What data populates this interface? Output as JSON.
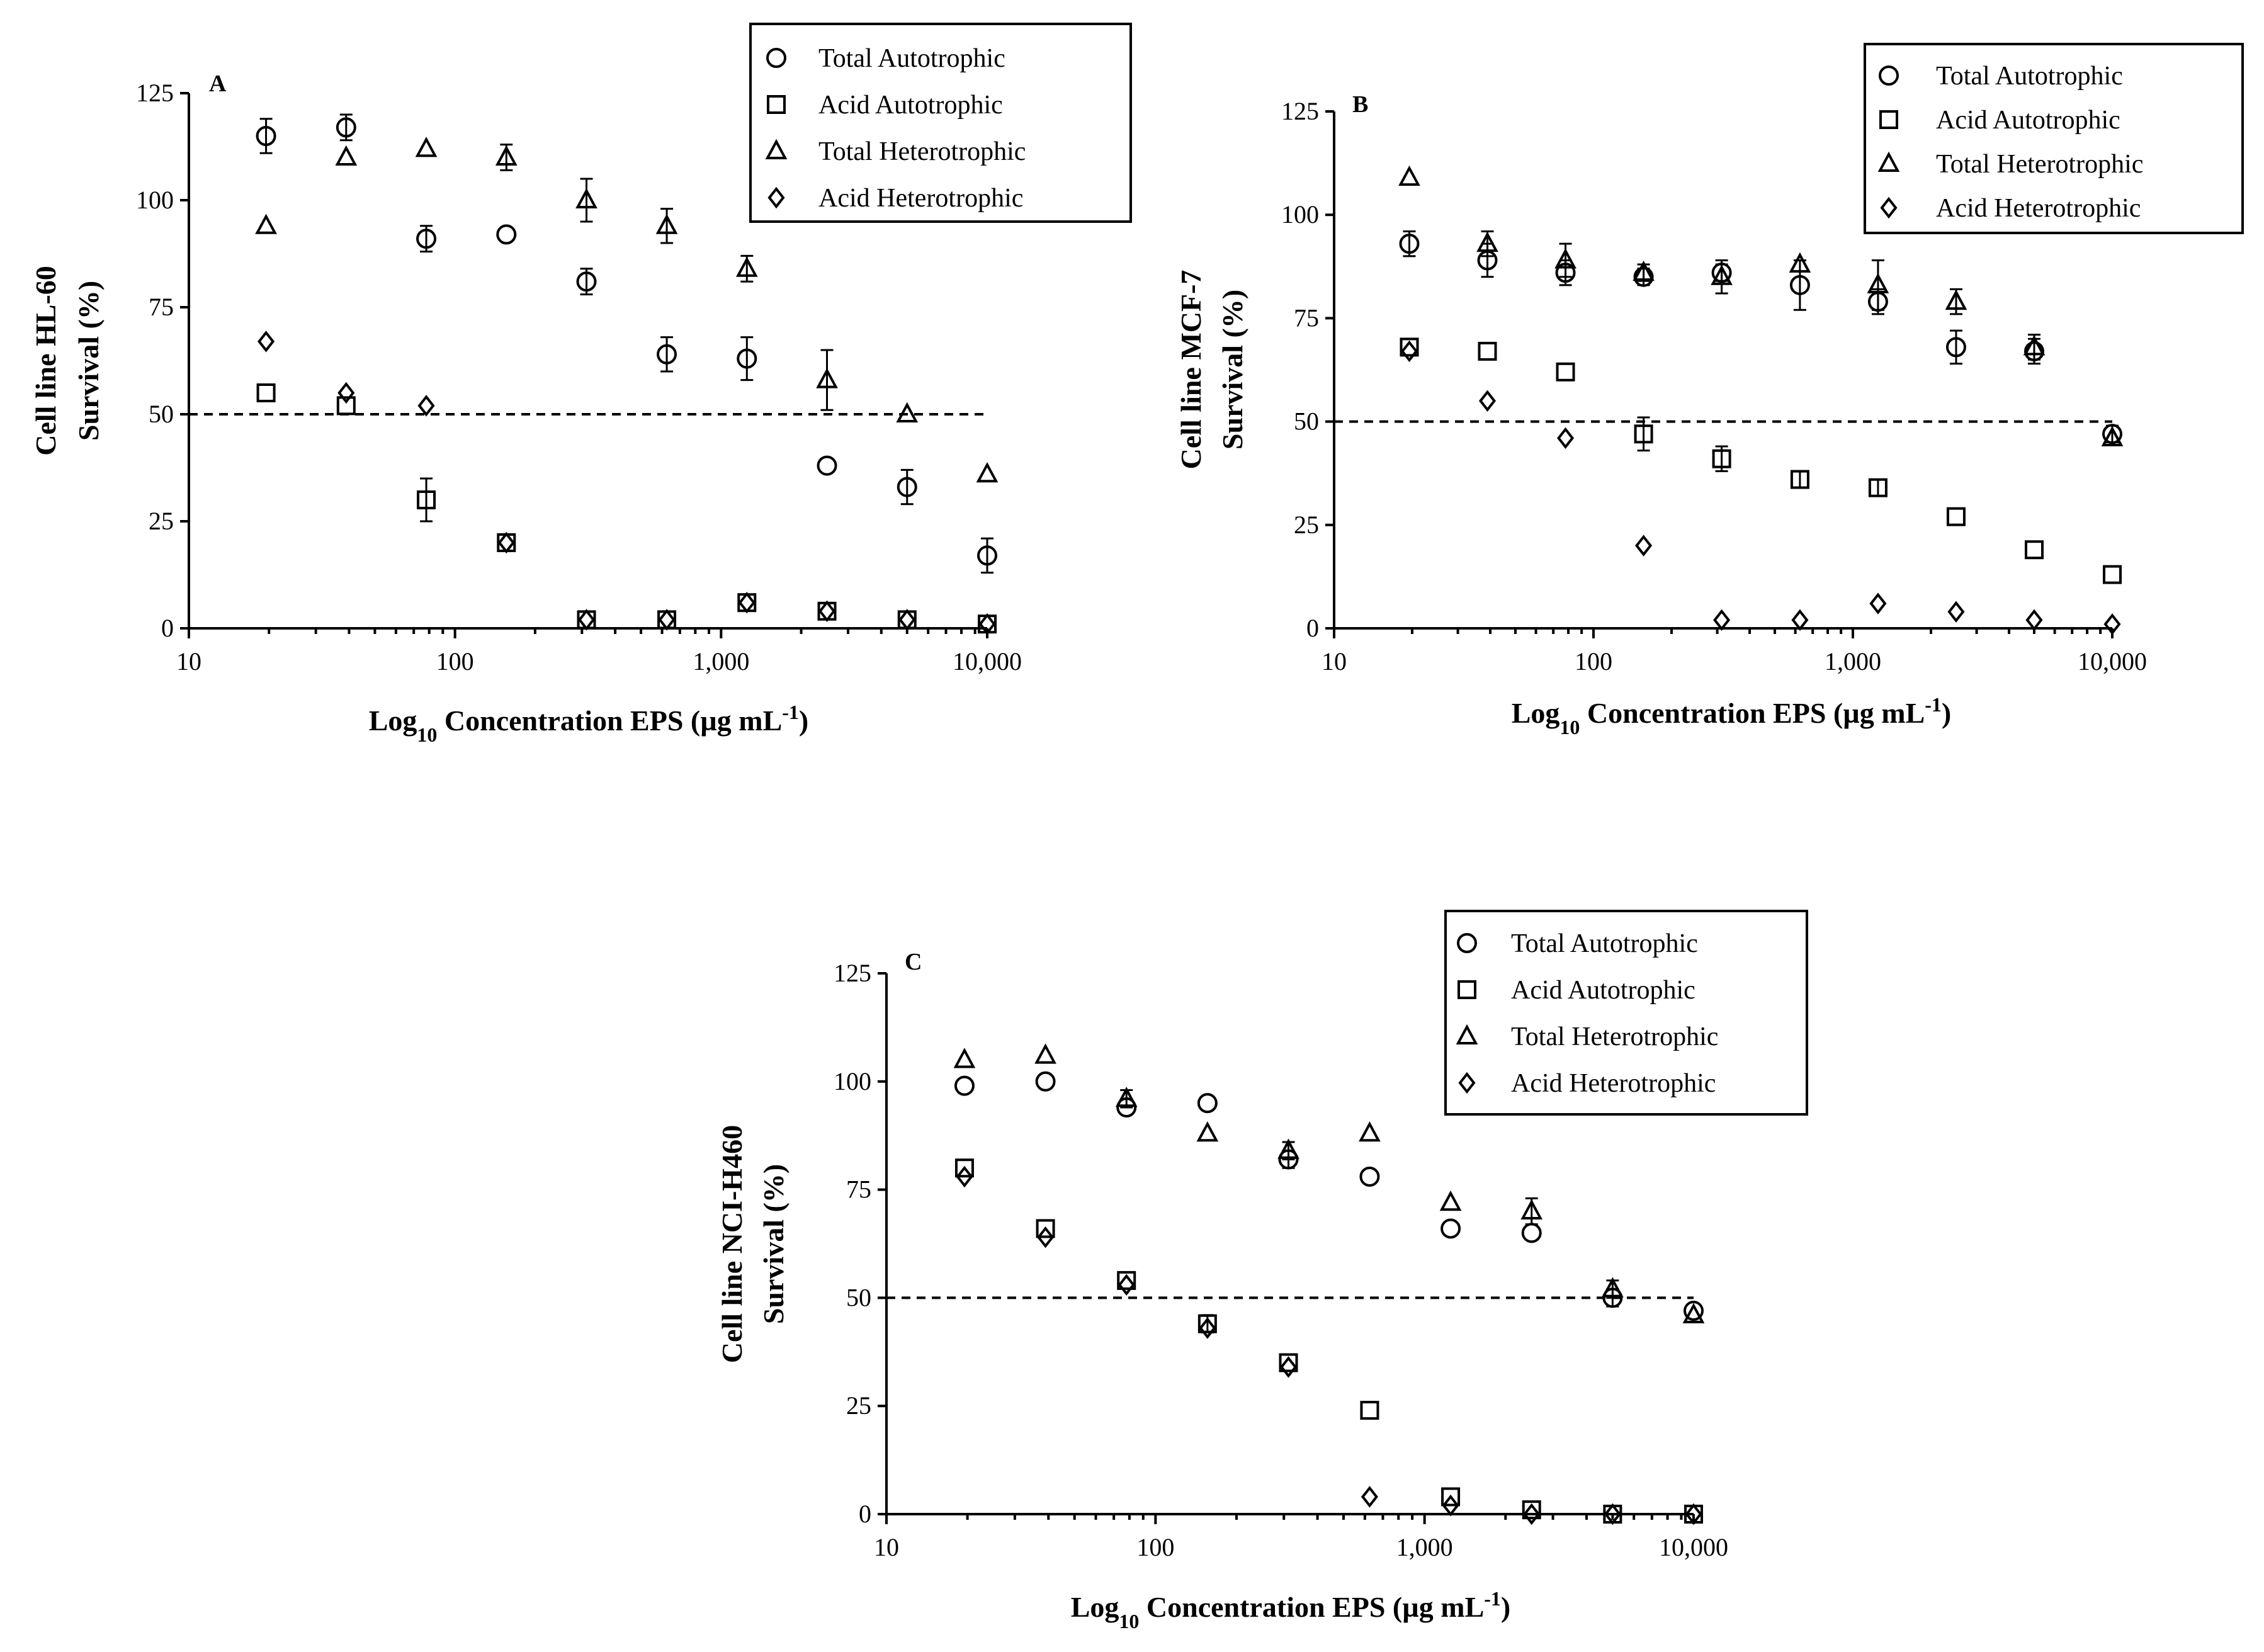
{
  "chart_data": [
    {
      "type": "scatter",
      "panel": "A",
      "title": "",
      "xlabel": "Log10 Concentration EPS (µg mL-1)",
      "xlabel_parts": {
        "pre": "Log",
        "sub": "10",
        "mid": " Concentration EPS (",
        "mu": "µ",
        "unit": "g mL",
        "sup": "-1",
        "post": ")"
      },
      "ylabel": [
        "Cell line HL-60",
        "Survival (%)"
      ],
      "xscale": "log",
      "xlim": [
        10,
        10000
      ],
      "xticks": [
        10,
        100,
        1000,
        10000
      ],
      "xtick_labels": [
        "10",
        "100",
        "1,000",
        "10,000"
      ],
      "ylim": [
        0,
        125
      ],
      "yticks": [
        0,
        25,
        50,
        75,
        100,
        125
      ],
      "ytick_labels": [
        "0",
        "25",
        "50",
        "75",
        "100",
        "125"
      ],
      "reference_line": 50,
      "legend_position": "top-right",
      "x": [
        19.5,
        39,
        78,
        156,
        312,
        625,
        1250,
        2500,
        5000,
        10000
      ],
      "series": [
        {
          "name": "Total Autotrophic",
          "marker": "circle",
          "values": [
            115,
            117,
            91,
            92,
            81,
            64,
            63,
            38,
            33,
            17
          ],
          "err": [
            4,
            3,
            3,
            0,
            3,
            4,
            5,
            0,
            4,
            4
          ]
        },
        {
          "name": "Acid Autotrophic",
          "marker": "square",
          "values": [
            55,
            52,
            30,
            20,
            2,
            2,
            6,
            4,
            2,
            1
          ],
          "err": [
            0,
            0,
            5,
            0,
            0,
            0,
            0,
            0,
            0,
            0
          ]
        },
        {
          "name": "Total Heterotrophic",
          "marker": "triangle",
          "values": [
            94,
            110,
            112,
            110,
            100,
            94,
            84,
            58,
            50,
            36
          ],
          "err": [
            0,
            0,
            0,
            3,
            5,
            4,
            3,
            7,
            0,
            0
          ]
        },
        {
          "name": "Acid Heterotrophic",
          "marker": "diamond",
          "values": [
            67,
            55,
            52,
            20,
            2,
            2,
            6,
            4,
            2,
            1
          ],
          "err": [
            0,
            0,
            0,
            0,
            0,
            0,
            0,
            0,
            0,
            0
          ]
        }
      ]
    },
    {
      "type": "scatter",
      "panel": "B",
      "title": "",
      "xlabel": "Log10 Concentration EPS (µg mL-1)",
      "xlabel_parts": {
        "pre": "Log",
        "sub": "10",
        "mid": " Concentration EPS (",
        "mu": "µ",
        "unit": "g mL",
        "sup": "-1",
        "post": ")"
      },
      "ylabel": [
        "Cell line MCF-7",
        "Survival (%)"
      ],
      "xscale": "log",
      "xlim": [
        10,
        10000
      ],
      "xticks": [
        10,
        100,
        1000,
        10000
      ],
      "xtick_labels": [
        "10",
        "100",
        "1,000",
        "10,000"
      ],
      "ylim": [
        0,
        125
      ],
      "yticks": [
        0,
        25,
        50,
        75,
        100,
        125
      ],
      "ytick_labels": [
        "0",
        "25",
        "50",
        "75",
        "100",
        "125"
      ],
      "reference_line": 50,
      "legend_position": "top-right",
      "x": [
        19.5,
        39,
        78,
        156,
        312,
        625,
        1250,
        2500,
        5000,
        10000
      ],
      "series": [
        {
          "name": "Total Autotrophic",
          "marker": "circle",
          "values": [
            93,
            89,
            86,
            85,
            86,
            83,
            79,
            68,
            67,
            47
          ],
          "err": [
            3,
            4,
            3,
            2,
            2,
            6,
            3,
            4,
            3,
            2
          ]
        },
        {
          "name": "Acid Autotrophic",
          "marker": "square",
          "values": [
            68,
            67,
            62,
            47,
            41,
            36,
            34,
            27,
            19,
            13
          ],
          "err": [
            0,
            0,
            0,
            4,
            3,
            2,
            2,
            0,
            0,
            0
          ]
        },
        {
          "name": "Total Heterotrophic",
          "marker": "triangle",
          "values": [
            109,
            93,
            89,
            86,
            85,
            88,
            83,
            79,
            68,
            46
          ],
          "err": [
            0,
            3,
            4,
            2,
            4,
            0,
            6,
            3,
            3,
            0
          ]
        },
        {
          "name": "Acid Heterotrophic",
          "marker": "diamond",
          "values": [
            67,
            55,
            46,
            20,
            2,
            2,
            6,
            4,
            2,
            1
          ],
          "err": [
            0,
            0,
            0,
            0,
            0,
            0,
            0,
            0,
            0,
            0
          ]
        }
      ]
    },
    {
      "type": "scatter",
      "panel": "C",
      "title": "",
      "xlabel": "Log10 Concentration EPS (µg mL-1)",
      "xlabel_parts": {
        "pre": "Log",
        "sub": "10",
        "mid": " Concentration EPS (",
        "mu": "µ",
        "unit": "g mL",
        "sup": "-1",
        "post": ")"
      },
      "ylabel": [
        "Cell line NCI-H460",
        "Survival (%)"
      ],
      "xscale": "log",
      "xlim": [
        10,
        10000
      ],
      "xticks": [
        10,
        100,
        1000,
        10000
      ],
      "xtick_labels": [
        "10",
        "100",
        "1,000",
        "10,000"
      ],
      "ylim": [
        0,
        125
      ],
      "yticks": [
        0,
        25,
        50,
        75,
        100,
        125
      ],
      "ytick_labels": [
        "0",
        "25",
        "50",
        "75",
        "100",
        "125"
      ],
      "reference_line": 50,
      "legend_position": "top-right",
      "x": [
        19.5,
        39,
        78,
        156,
        312,
        625,
        1250,
        2500,
        5000,
        10000
      ],
      "series": [
        {
          "name": "Total Autotrophic",
          "marker": "circle",
          "values": [
            99,
            100,
            94,
            95,
            82,
            78,
            66,
            65,
            50,
            47
          ],
          "err": [
            0,
            0,
            0,
            0,
            2,
            0,
            0,
            0,
            2,
            0
          ]
        },
        {
          "name": "Acid Autotrophic",
          "marker": "square",
          "values": [
            80,
            66,
            54,
            44,
            35,
            24,
            4,
            1,
            0,
            0
          ],
          "err": [
            0,
            0,
            0,
            2,
            0,
            0,
            0,
            0,
            0,
            0
          ]
        },
        {
          "name": "Total Heterotrophic",
          "marker": "triangle",
          "values": [
            105,
            106,
            96,
            88,
            84,
            88,
            72,
            70,
            52,
            46
          ],
          "err": [
            0,
            0,
            2,
            0,
            2,
            0,
            0,
            3,
            2,
            0
          ]
        },
        {
          "name": "Acid Heterotrophic",
          "marker": "diamond",
          "values": [
            78,
            64,
            53,
            43,
            34,
            4,
            2,
            0,
            0,
            0
          ],
          "err": [
            0,
            0,
            0,
            0,
            0,
            0,
            0,
            0,
            0,
            0
          ]
        }
      ]
    }
  ]
}
